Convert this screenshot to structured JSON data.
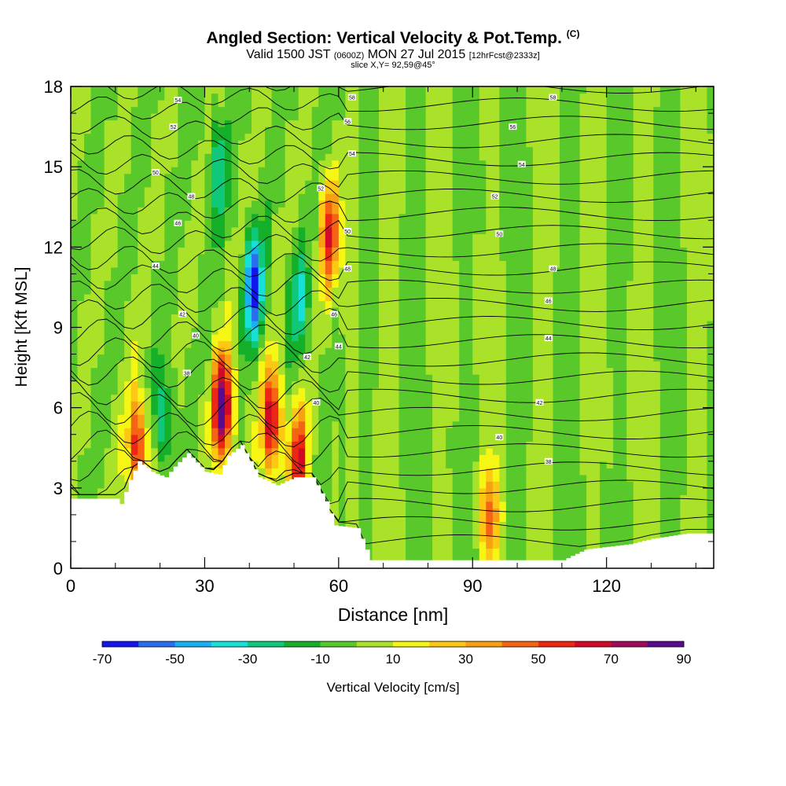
{
  "header": {
    "title": "Angled Section: Vertical Velocity & Pot.Temp.",
    "title_tag": "(C)",
    "valid_prefix": "Valid 1500 JST",
    "valid_utc": "(0600Z)",
    "valid_date": "MON 27 Jul 2015",
    "forecast": "[12hrFcst@2333z]",
    "slice": "slice X,Y= 92,59@45°"
  },
  "colors": {
    "scale": [
      "#1414f0",
      "#2a6ef0",
      "#18b0f0",
      "#16e0d8",
      "#10c87a",
      "#14b02a",
      "#58c82a",
      "#aae22a",
      "#f6f614",
      "#fcc814",
      "#f8a014",
      "#f46414",
      "#ec2814",
      "#d20a28",
      "#a00a5a",
      "#5a0a8c"
    ],
    "background_field": "#6ed22c",
    "terrain": "#ffffff",
    "contour": "#000000"
  },
  "chart_data": {
    "type": "heatmap",
    "xlabel": "Distance [nm]",
    "ylabel": "Height [Kft MSL]",
    "xlim": [
      0,
      144
    ],
    "ylim": [
      0,
      18
    ],
    "x_ticks": [
      "0",
      "30",
      "60",
      "90",
      "120"
    ],
    "y_ticks": [
      "0",
      "3",
      "6",
      "9",
      "12",
      "15",
      "18"
    ],
    "colorbar": {
      "label": "Vertical Velocity [cm/s]",
      "range": [
        -70,
        90
      ],
      "step": 10,
      "tick_labels": [
        "-70",
        "-50",
        "-30",
        "-10",
        "10",
        "30",
        "50",
        "70",
        "90"
      ]
    },
    "features": {
      "updrafts": [
        {
          "x": 34,
          "z": 6.0,
          "w": 90
        },
        {
          "x": 45,
          "z": 5.5,
          "w": 70
        },
        {
          "x": 51,
          "z": 4.0,
          "w": 60
        },
        {
          "x": 58,
          "z": 12.5,
          "w": 55
        },
        {
          "x": 15,
          "z": 4.5,
          "w": 60
        },
        {
          "x": 94,
          "z": 2.0,
          "w": 40
        }
      ],
      "downdrafts": [
        {
          "x": 41,
          "z": 10.5,
          "w": -60
        },
        {
          "x": 33,
          "z": 15.0,
          "w": -30
        },
        {
          "x": 51,
          "z": 10.0,
          "w": -30
        },
        {
          "x": 21,
          "z": 5.5,
          "w": -30
        }
      ],
      "terrain": [
        [
          0,
          2.6
        ],
        [
          10,
          2.6
        ],
        [
          11,
          2.4
        ],
        [
          13,
          3.3
        ],
        [
          15,
          4.0
        ],
        [
          18,
          3.6
        ],
        [
          21,
          3.4
        ],
        [
          23,
          3.8
        ],
        [
          26,
          4.3
        ],
        [
          30,
          3.6
        ],
        [
          33,
          3.5
        ],
        [
          35,
          4.2
        ],
        [
          38,
          4.6
        ],
        [
          42,
          3.4
        ],
        [
          46,
          3.1
        ],
        [
          50,
          3.4
        ],
        [
          54,
          3.4
        ],
        [
          57,
          2.5
        ],
        [
          59,
          1.6
        ],
        [
          64,
          1.5
        ],
        [
          67,
          0.3
        ],
        [
          80,
          0.3
        ],
        [
          90,
          0.3
        ],
        [
          96,
          0.3
        ],
        [
          110,
          0.3
        ],
        [
          115,
          0.7
        ],
        [
          125,
          0.9
        ],
        [
          130,
          1.1
        ],
        [
          138,
          1.3
        ],
        [
          144,
          1.3
        ]
      ]
    },
    "contour_labels": [
      {
        "x": 24,
        "z": 17.5,
        "text": "54"
      },
      {
        "x": 23,
        "z": 16.5,
        "text": "52"
      },
      {
        "x": 19,
        "z": 14.8,
        "text": "50"
      },
      {
        "x": 27,
        "z": 13.9,
        "text": "48"
      },
      {
        "x": 24,
        "z": 12.9,
        "text": "46"
      },
      {
        "x": 19,
        "z": 11.3,
        "text": "44"
      },
      {
        "x": 25,
        "z": 9.5,
        "text": "42"
      },
      {
        "x": 28,
        "z": 8.7,
        "text": "40"
      },
      {
        "x": 26,
        "z": 7.3,
        "text": "38"
      },
      {
        "x": 63,
        "z": 17.6,
        "text": "58"
      },
      {
        "x": 62,
        "z": 16.7,
        "text": "56"
      },
      {
        "x": 63,
        "z": 15.5,
        "text": "54"
      },
      {
        "x": 56,
        "z": 14.2,
        "text": "52"
      },
      {
        "x": 62,
        "z": 12.6,
        "text": "50"
      },
      {
        "x": 62,
        "z": 11.2,
        "text": "48"
      },
      {
        "x": 59,
        "z": 9.5,
        "text": "46"
      },
      {
        "x": 60,
        "z": 8.3,
        "text": "44"
      },
      {
        "x": 53,
        "z": 7.9,
        "text": "42"
      },
      {
        "x": 55,
        "z": 6.2,
        "text": "40"
      },
      {
        "x": 108,
        "z": 17.6,
        "text": "58"
      },
      {
        "x": 99,
        "z": 16.5,
        "text": "56"
      },
      {
        "x": 101,
        "z": 15.1,
        "text": "54"
      },
      {
        "x": 95,
        "z": 13.9,
        "text": "52"
      },
      {
        "x": 96,
        "z": 12.5,
        "text": "50"
      },
      {
        "x": 108,
        "z": 11.2,
        "text": "48"
      },
      {
        "x": 107,
        "z": 10.0,
        "text": "46"
      },
      {
        "x": 107,
        "z": 8.6,
        "text": "44"
      },
      {
        "x": 105,
        "z": 6.2,
        "text": "42"
      },
      {
        "x": 96,
        "z": 4.9,
        "text": "40"
      },
      {
        "x": 107,
        "z": 4.0,
        "text": "38"
      }
    ]
  }
}
